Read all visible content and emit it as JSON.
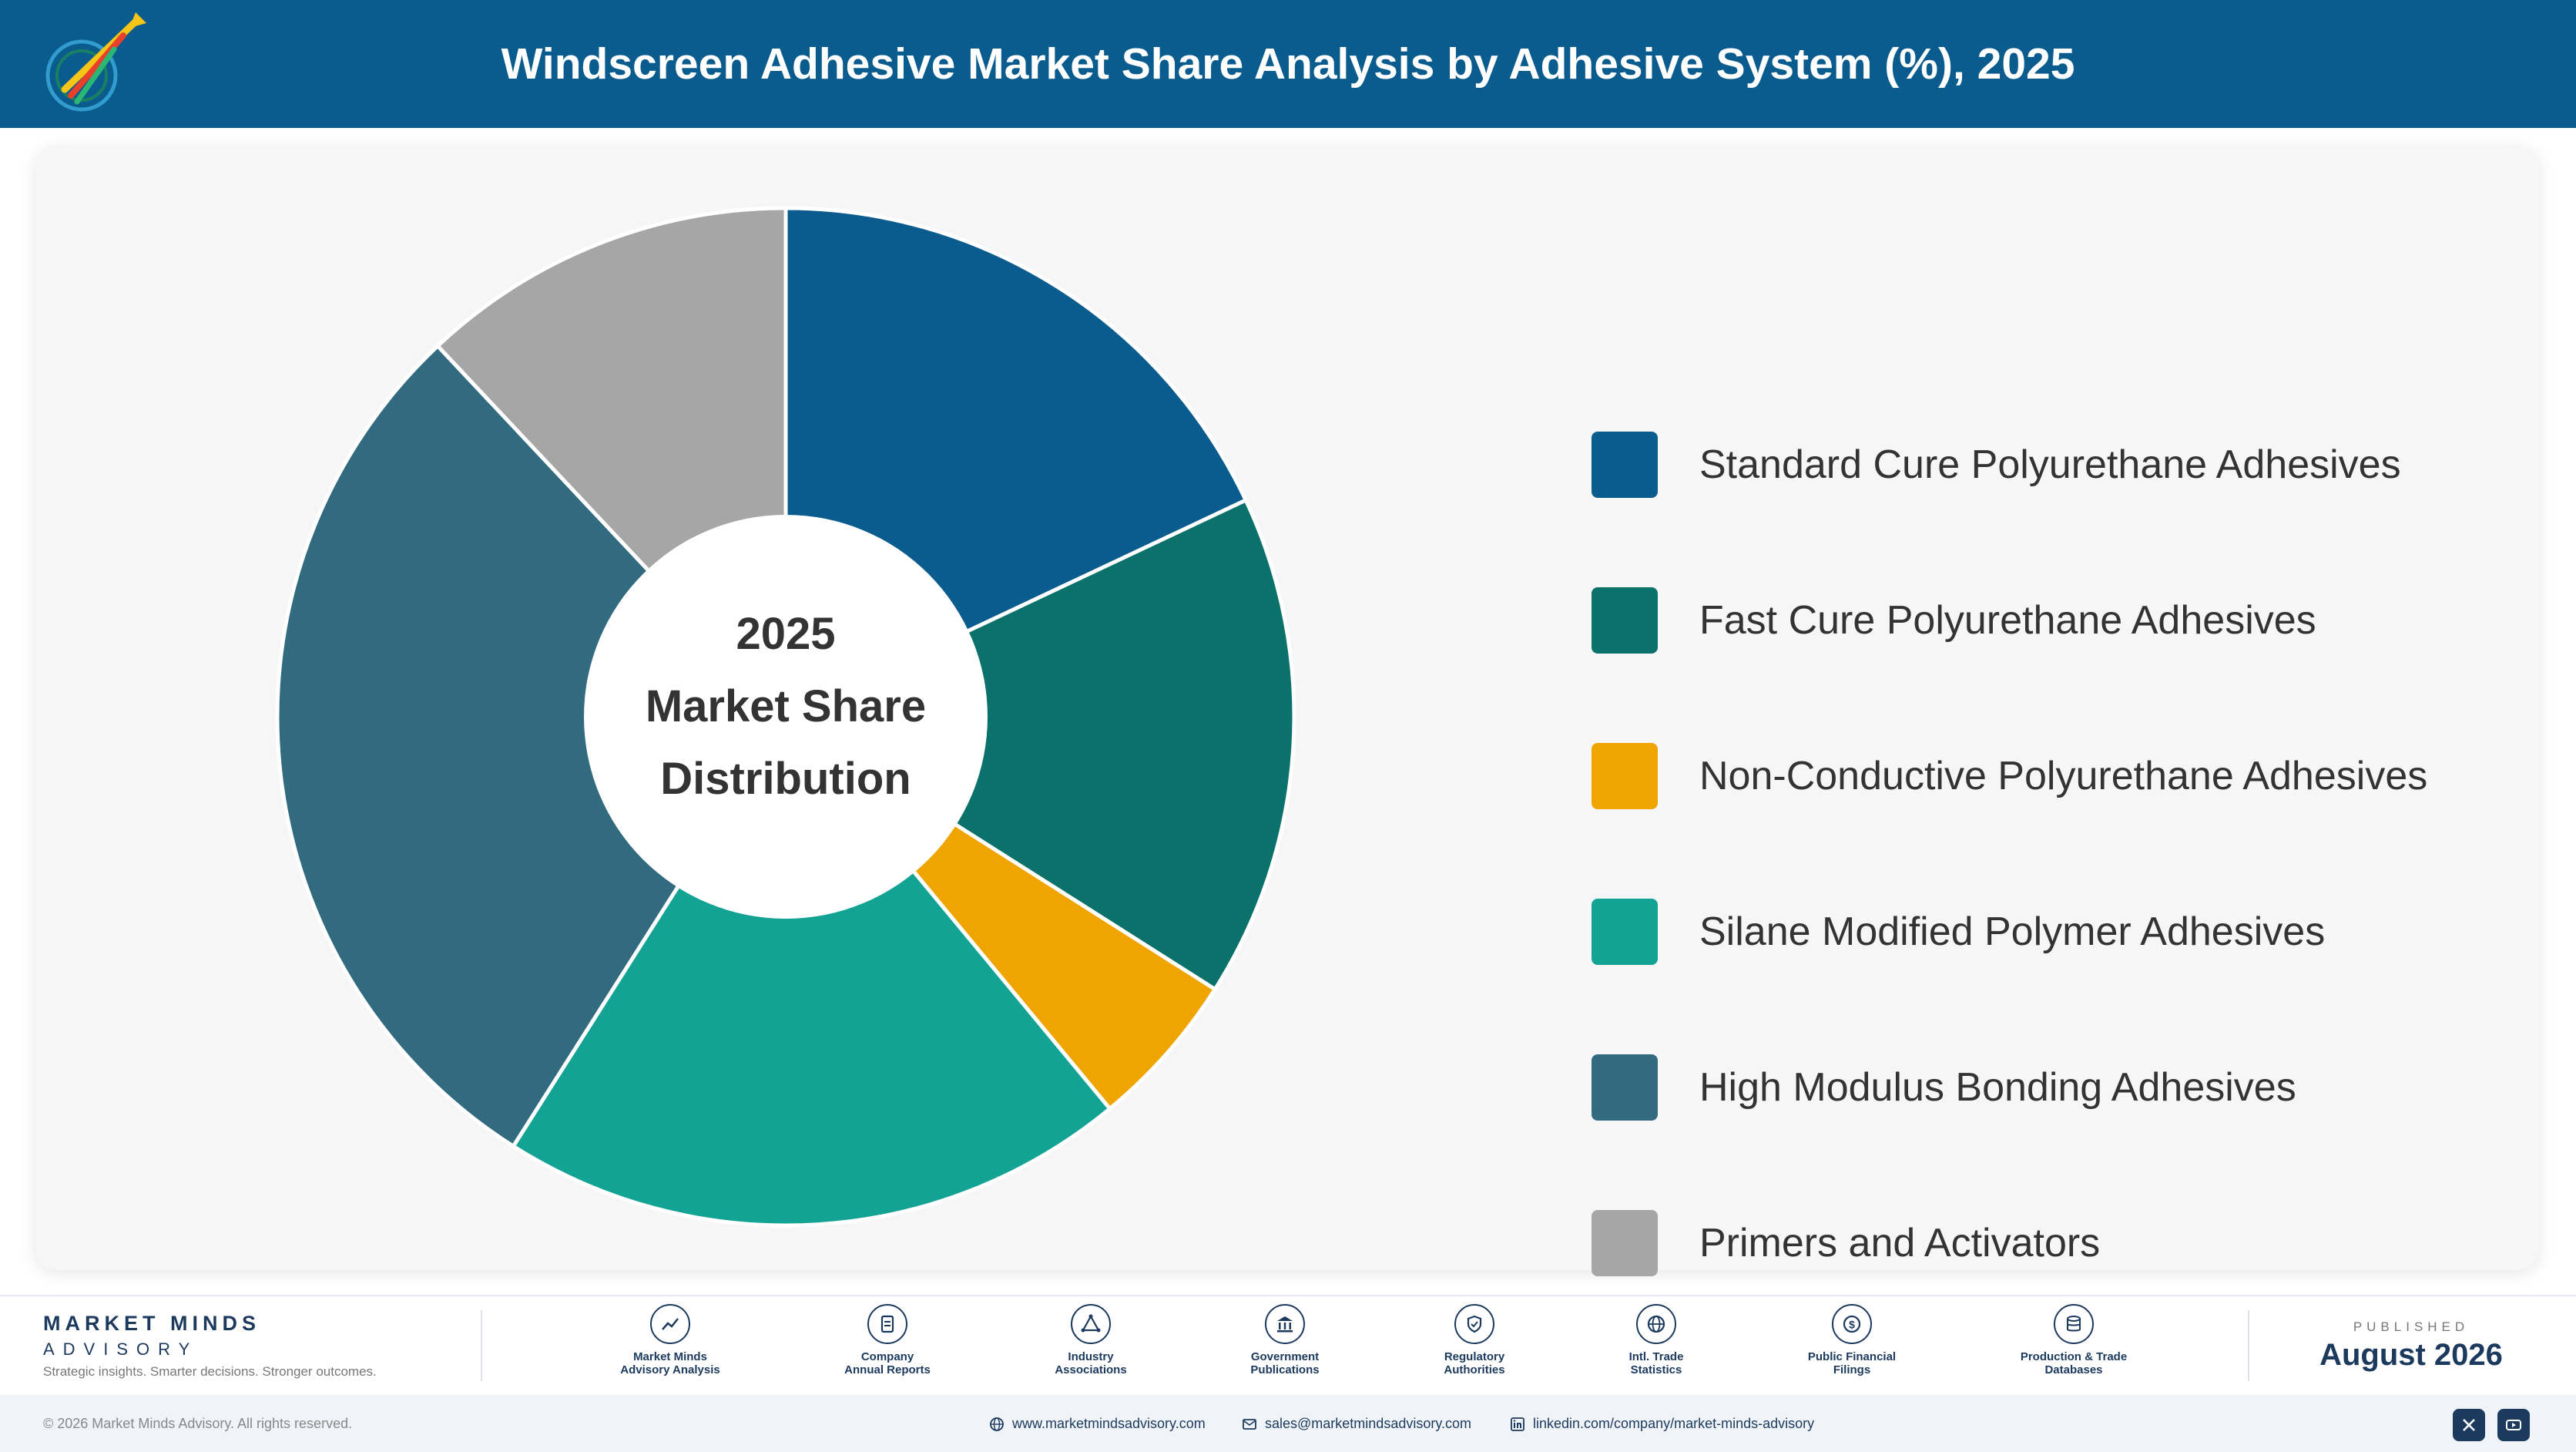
{
  "header": {
    "title": "Windscreen Adhesive Market Share Analysis by Adhesive System (%), 2025"
  },
  "chart_data": {
    "type": "pie",
    "center_label": [
      "2025",
      "Market Share",
      "Distribution"
    ],
    "categories": [
      "Standard Cure Polyurethane Adhesives",
      "Fast Cure Polyurethane Adhesives",
      "Non-Conductive Polyurethane Adhesives",
      "Silane Modified Polymer Adhesives",
      "High Modulus Bonding Adhesives",
      "Primers and Activators"
    ],
    "values": [
      18,
      16,
      5,
      20,
      29,
      12
    ],
    "colors": [
      "#0a5c8e",
      "#0b716b",
      "#f0a400",
      "#13a394",
      "#326b80",
      "#a6a6a6"
    ],
    "legend": "right"
  },
  "footer": {
    "brand_name": "MARKET MINDS",
    "brand_sub": "ADVISORY",
    "brand_tagline": "Strategic insights. Smarter decisions. Stronger outcomes.",
    "sources": [
      {
        "icon": "line-chart-icon",
        "line1": "Market Minds",
        "line2": "Advisory Analysis"
      },
      {
        "icon": "document-icon",
        "line1": "Company",
        "line2": "Annual Reports"
      },
      {
        "icon": "network-icon",
        "line1": "Industry",
        "line2": "Associations"
      },
      {
        "icon": "government-building-icon",
        "line1": "Government",
        "line2": "Publications"
      },
      {
        "icon": "shield-icon",
        "line1": "Regulatory",
        "line2": "Authorities"
      },
      {
        "icon": "globe-icon",
        "line1": "Intl. Trade",
        "line2": "Statistics"
      },
      {
        "icon": "dollar-icon",
        "line1": "Public Financial",
        "line2": "Filings"
      },
      {
        "icon": "database-icon",
        "line1": "Production & Trade",
        "line2": "Databases"
      }
    ],
    "published_label": "PUBLISHED",
    "published_date": "August 2026",
    "copyright": "© 2026 Market Minds Advisory. All rights reserved.",
    "website": "www.marketmindsadvisory.com",
    "email": "sales@marketmindsadvisory.com",
    "linkedin": "linkedin.com/company/market-minds-advisory"
  }
}
